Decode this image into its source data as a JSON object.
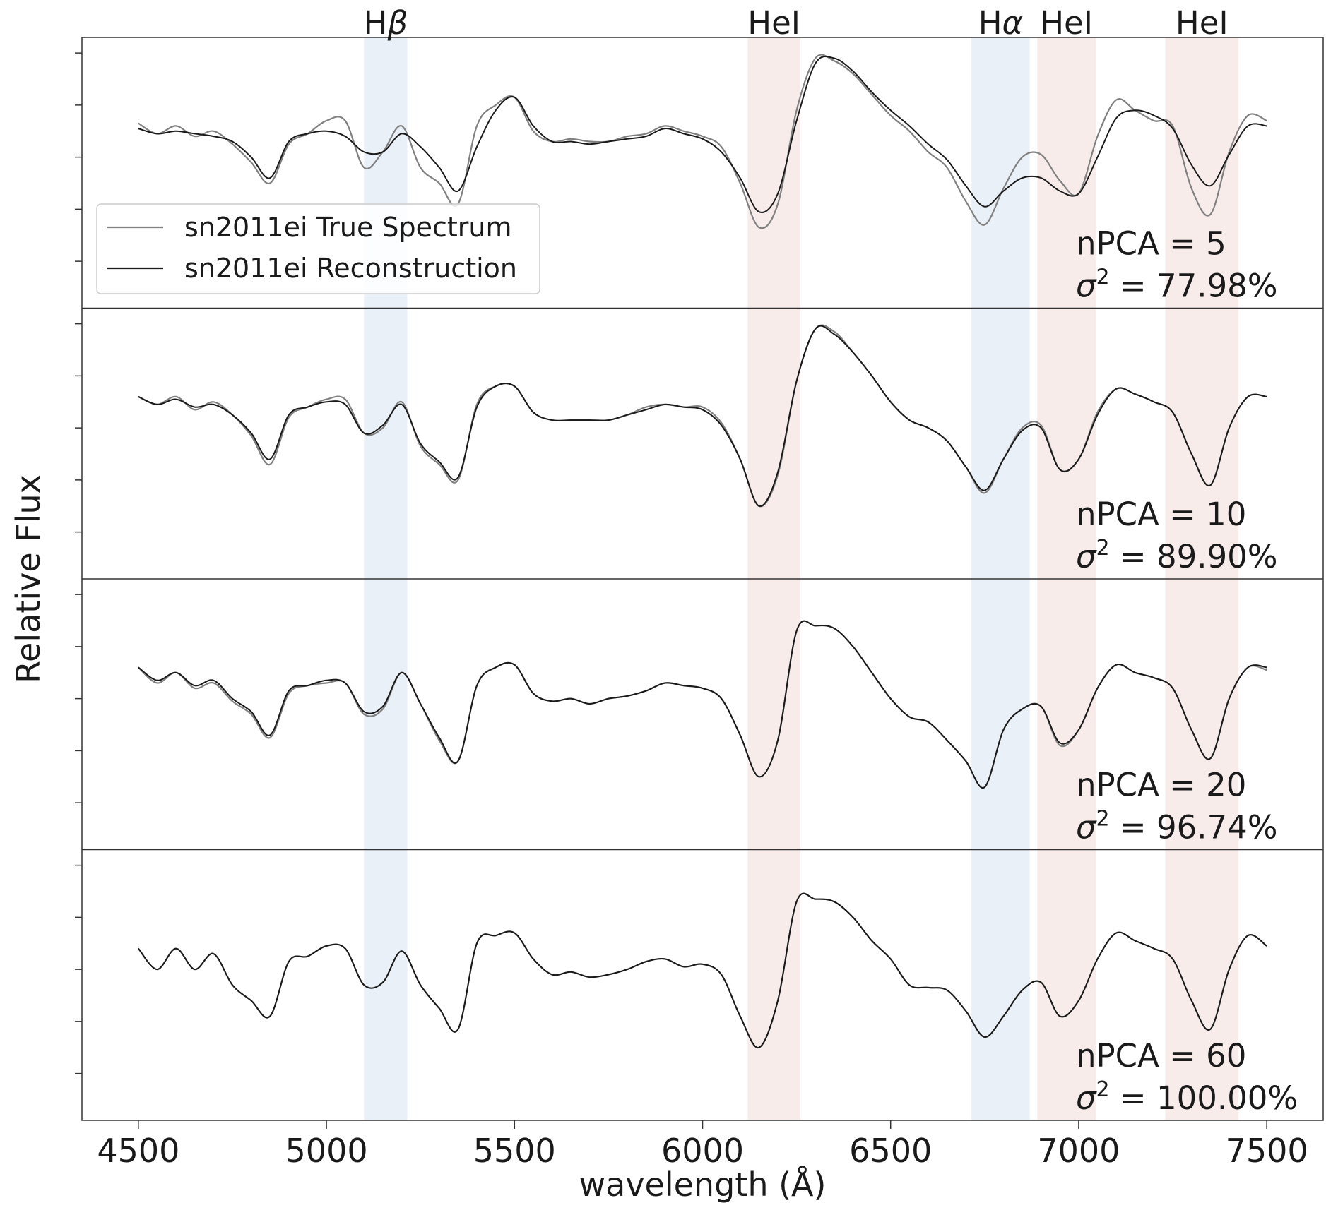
{
  "chart_data": {
    "type": "line",
    "xlabel": "wavelength (Å)",
    "ylabel": "Relative Flux",
    "xlim": [
      4350,
      7650
    ],
    "xticks": [
      4500,
      5000,
      5500,
      6000,
      6500,
      7000,
      7500
    ],
    "ylim": [
      -2.6,
      2.6
    ],
    "y_tick_labels_shown": false,
    "grid": false,
    "legend_position": "left, inside first panel",
    "legend": [
      {
        "name": "sn2011ei True Spectrum",
        "color": "#808080"
      },
      {
        "name": "sn2011ei Reconstruction",
        "color": "#1a1a1a"
      }
    ],
    "line_bands": [
      {
        "label": "Hβ",
        "label_base": "H",
        "label_greek": "β",
        "range": [
          5100,
          5215
        ],
        "color": "#dce6f4"
      },
      {
        "label": "HeI",
        "label_base": "HeI",
        "label_greek": "",
        "range": [
          6120,
          6260
        ],
        "color": "#f4e0de"
      },
      {
        "label": "Hα",
        "label_base": "H",
        "label_greek": "α",
        "range": [
          6715,
          6870
        ],
        "color": "#dce6f4"
      },
      {
        "label": "HeI",
        "label_base": "HeI",
        "label_greek": "",
        "range": [
          6890,
          7045
        ],
        "color": "#f4e0de"
      },
      {
        "label": "HeI",
        "label_base": "HeI",
        "label_greek": "",
        "range": [
          7230,
          7425
        ],
        "color": "#f4e0de"
      }
    ],
    "x": [
      4500,
      4550,
      4600,
      4650,
      4700,
      4750,
      4800,
      4850,
      4900,
      4950,
      5000,
      5050,
      5100,
      5150,
      5200,
      5250,
      5300,
      5350,
      5400,
      5450,
      5500,
      5550,
      5600,
      5650,
      5700,
      5750,
      5800,
      5850,
      5900,
      5950,
      6000,
      6050,
      6100,
      6150,
      6200,
      6250,
      6300,
      6350,
      6400,
      6450,
      6500,
      6550,
      6600,
      6650,
      6700,
      6750,
      6800,
      6850,
      6900,
      6950,
      7000,
      7050,
      7100,
      7150,
      7200,
      7250,
      7300,
      7350,
      7400,
      7450,
      7500
    ],
    "panels": [
      {
        "npca_text": "nPCA = 5",
        "variance_text": " = 77.98%",
        "series": [
          {
            "name": "sn2011ei True Spectrum",
            "values": [
              0.95,
              0.75,
              0.9,
              0.7,
              0.8,
              0.55,
              0.2,
              -0.2,
              0.55,
              0.75,
              1.0,
              1.0,
              0.1,
              0.4,
              0.9,
              0.1,
              -0.2,
              -0.6,
              0.9,
              1.3,
              1.45,
              0.8,
              0.6,
              0.65,
              0.6,
              0.6,
              0.7,
              0.75,
              0.9,
              0.8,
              0.7,
              0.5,
              -0.2,
              -1.05,
              -0.6,
              1.2,
              2.2,
              2.15,
              1.9,
              1.5,
              1.1,
              0.8,
              0.4,
              0.1,
              -0.55,
              -1.0,
              -0.3,
              0.3,
              0.35,
              -0.15,
              -0.4,
              0.7,
              1.4,
              1.2,
              1.0,
              0.9,
              -0.3,
              -0.8,
              0.4,
              1.1,
              1.0
            ]
          },
          {
            "name": "sn2011ei Reconstruction",
            "values": [
              0.85,
              0.75,
              0.8,
              0.75,
              0.7,
              0.6,
              0.3,
              -0.1,
              0.6,
              0.75,
              0.8,
              0.7,
              0.4,
              0.4,
              0.75,
              0.5,
              0.1,
              -0.35,
              0.5,
              1.2,
              1.45,
              0.9,
              0.6,
              0.6,
              0.55,
              0.6,
              0.65,
              0.7,
              0.85,
              0.75,
              0.65,
              0.4,
              -0.1,
              -0.75,
              -0.4,
              1.0,
              2.1,
              2.2,
              1.95,
              1.55,
              1.2,
              0.9,
              0.55,
              0.25,
              -0.25,
              -0.65,
              -0.35,
              -0.1,
              -0.1,
              -0.35,
              -0.4,
              0.3,
              1.05,
              1.2,
              1.1,
              0.85,
              0.15,
              -0.25,
              0.35,
              0.9,
              0.9
            ]
          }
        ]
      },
      {
        "npca_text": "nPCA = 10",
        "variance_text": " = 89.90%",
        "series": [
          {
            "name": "sn2011ei True Spectrum",
            "values": [
              0.9,
              0.75,
              0.9,
              0.65,
              0.8,
              0.55,
              0.15,
              -0.4,
              0.5,
              0.7,
              0.85,
              0.85,
              0.2,
              0.3,
              0.8,
              -0.05,
              -0.4,
              -0.7,
              0.75,
              1.1,
              1.1,
              0.6,
              0.45,
              0.45,
              0.45,
              0.45,
              0.55,
              0.7,
              0.75,
              0.7,
              0.7,
              0.4,
              -0.3,
              -1.2,
              -0.6,
              1.2,
              2.2,
              2.15,
              1.75,
              1.3,
              0.8,
              0.45,
              0.3,
              0.05,
              -0.45,
              -0.95,
              -0.3,
              0.3,
              0.35,
              -0.5,
              -0.3,
              0.6,
              1.05,
              0.95,
              0.8,
              0.6,
              -0.2,
              -0.8,
              0.3,
              0.9,
              0.9
            ]
          },
          {
            "name": "sn2011ei Reconstruction",
            "values": [
              0.9,
              0.75,
              0.85,
              0.7,
              0.75,
              0.55,
              0.2,
              -0.3,
              0.55,
              0.7,
              0.8,
              0.75,
              0.2,
              0.35,
              0.75,
              0.0,
              -0.35,
              -0.65,
              0.7,
              1.1,
              1.1,
              0.6,
              0.45,
              0.45,
              0.45,
              0.45,
              0.55,
              0.65,
              0.75,
              0.7,
              0.65,
              0.35,
              -0.3,
              -1.2,
              -0.55,
              1.2,
              2.2,
              2.1,
              1.75,
              1.3,
              0.8,
              0.45,
              0.3,
              0.05,
              -0.45,
              -0.9,
              -0.3,
              0.25,
              0.3,
              -0.5,
              -0.3,
              0.55,
              1.05,
              0.95,
              0.8,
              0.6,
              -0.2,
              -0.8,
              0.3,
              0.9,
              0.9
            ]
          }
        ]
      },
      {
        "npca_text": "nPCA = 20",
        "variance_text": " = 96.74%",
        "series": [
          {
            "name": "sn2011ei True Spectrum",
            "values": [
              0.9,
              0.6,
              0.8,
              0.5,
              0.6,
              0.25,
              0.0,
              -0.45,
              0.4,
              0.55,
              0.6,
              0.6,
              0.0,
              0.1,
              0.8,
              0.2,
              -0.5,
              -0.9,
              0.55,
              0.9,
              0.95,
              0.4,
              0.25,
              0.3,
              0.2,
              0.3,
              0.35,
              0.45,
              0.6,
              0.55,
              0.5,
              0.3,
              -0.4,
              -1.2,
              -0.5,
              1.6,
              1.7,
              1.65,
              1.3,
              0.8,
              0.3,
              -0.05,
              -0.15,
              -0.5,
              -0.9,
              -1.4,
              -0.3,
              0.1,
              0.15,
              -0.6,
              -0.3,
              0.5,
              0.95,
              0.8,
              0.7,
              0.5,
              -0.3,
              -0.85,
              0.3,
              0.9,
              0.85
            ]
          },
          {
            "name": "sn2011ei Reconstruction",
            "values": [
              0.9,
              0.65,
              0.8,
              0.55,
              0.65,
              0.3,
              0.05,
              -0.4,
              0.45,
              0.55,
              0.65,
              0.6,
              0.05,
              0.15,
              0.8,
              0.2,
              -0.45,
              -0.9,
              0.55,
              0.9,
              0.95,
              0.4,
              0.25,
              0.3,
              0.2,
              0.3,
              0.35,
              0.45,
              0.6,
              0.55,
              0.5,
              0.3,
              -0.4,
              -1.2,
              -0.5,
              1.6,
              1.7,
              1.65,
              1.3,
              0.8,
              0.3,
              -0.05,
              -0.15,
              -0.5,
              -0.9,
              -1.4,
              -0.3,
              0.1,
              0.15,
              -0.55,
              -0.3,
              0.5,
              0.95,
              0.8,
              0.7,
              0.5,
              -0.3,
              -0.85,
              0.3,
              0.9,
              0.9
            ]
          }
        ]
      },
      {
        "npca_text": "nPCA = 60",
        "variance_text": " = 100.00%",
        "series": [
          {
            "name": "sn2011ei True Spectrum",
            "values": [
              0.7,
              0.3,
              0.7,
              0.3,
              0.6,
              0.0,
              -0.3,
              -0.6,
              0.45,
              0.55,
              0.75,
              0.7,
              0.0,
              0.05,
              0.65,
              0.0,
              -0.45,
              -0.85,
              0.8,
              0.95,
              1.0,
              0.5,
              0.2,
              0.25,
              0.15,
              0.2,
              0.3,
              0.45,
              0.5,
              0.35,
              0.4,
              0.2,
              -0.6,
              -1.2,
              -0.3,
              1.6,
              1.65,
              1.6,
              1.3,
              0.85,
              0.5,
              0.0,
              -0.05,
              -0.1,
              -0.5,
              -1.0,
              -0.6,
              -0.1,
              0.05,
              -0.6,
              -0.3,
              0.5,
              1.0,
              0.85,
              0.7,
              0.5,
              -0.3,
              -0.85,
              0.3,
              0.95,
              0.75
            ]
          },
          {
            "name": "sn2011ei Reconstruction",
            "values": [
              0.7,
              0.3,
              0.7,
              0.3,
              0.6,
              0.0,
              -0.3,
              -0.6,
              0.45,
              0.55,
              0.75,
              0.7,
              0.0,
              0.05,
              0.65,
              0.0,
              -0.45,
              -0.85,
              0.8,
              0.95,
              1.0,
              0.5,
              0.2,
              0.25,
              0.15,
              0.2,
              0.3,
              0.45,
              0.5,
              0.35,
              0.4,
              0.2,
              -0.6,
              -1.2,
              -0.3,
              1.6,
              1.65,
              1.6,
              1.3,
              0.85,
              0.5,
              0.0,
              -0.05,
              -0.1,
              -0.5,
              -1.0,
              -0.6,
              -0.1,
              0.05,
              -0.6,
              -0.3,
              0.5,
              1.0,
              0.85,
              0.7,
              0.5,
              -0.3,
              -0.85,
              0.3,
              0.95,
              0.75
            ]
          }
        ]
      }
    ],
    "annotation_sigma_symbol": "σ",
    "annotation_sigma_exponent": "2"
  }
}
